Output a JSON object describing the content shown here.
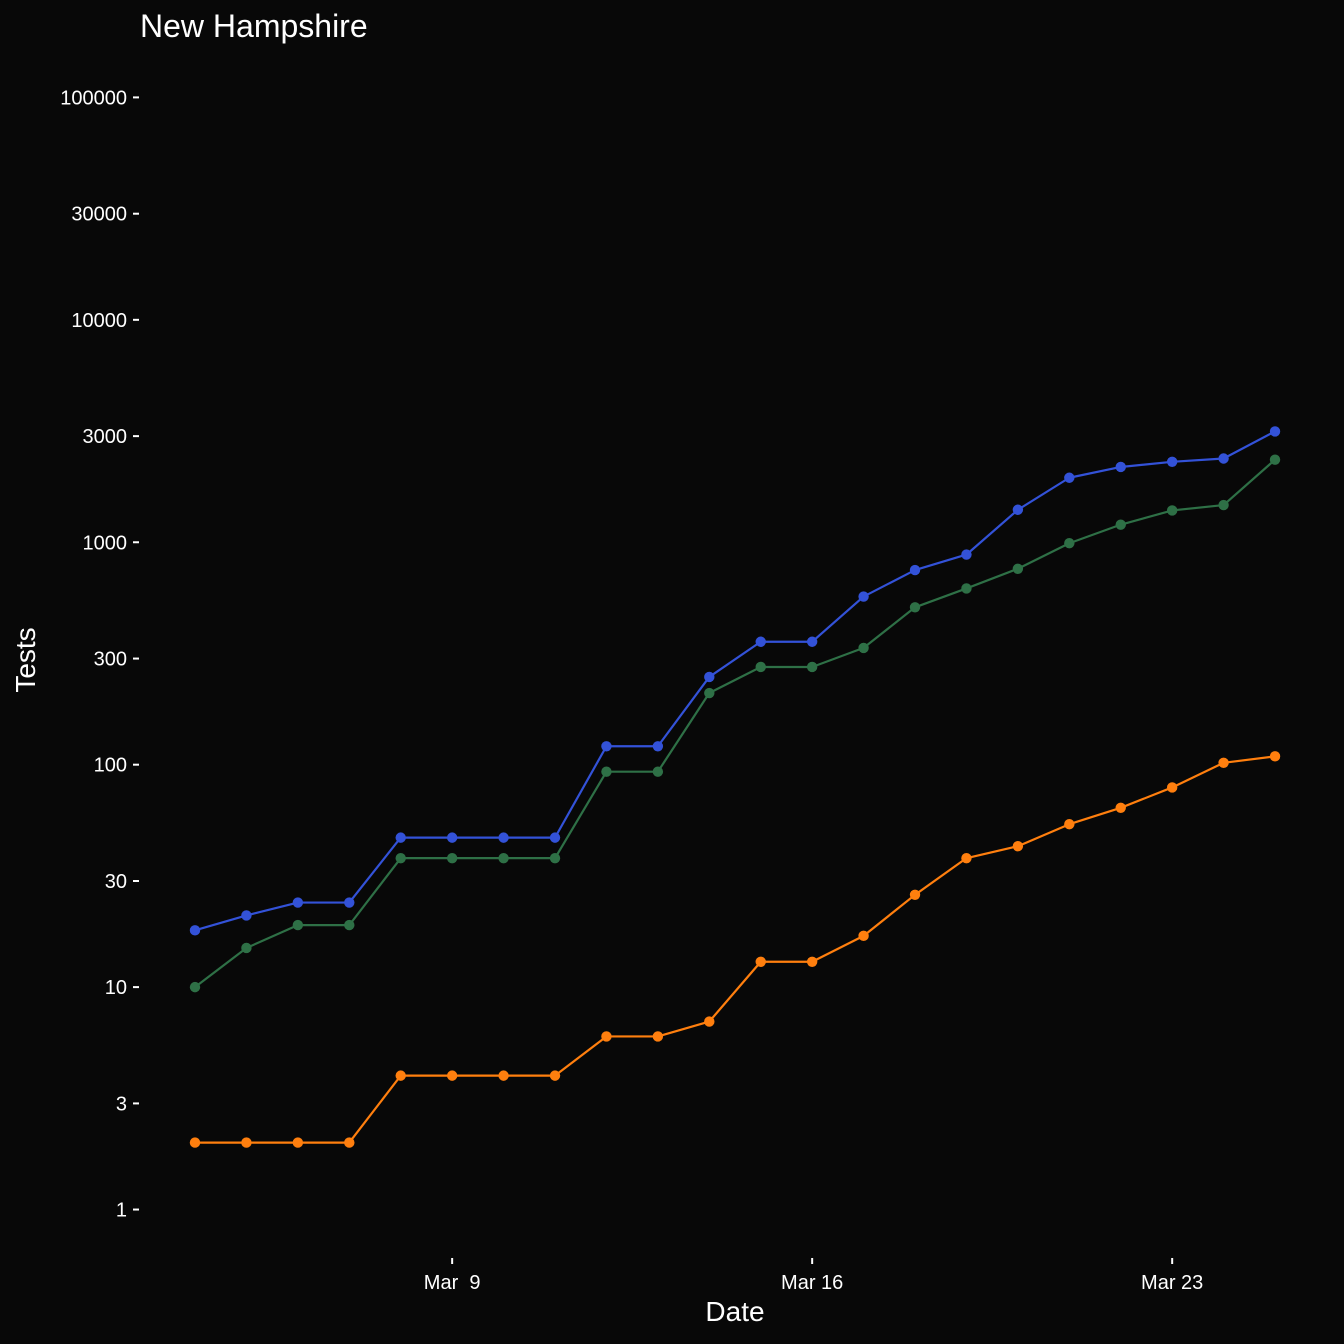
{
  "chart_data": {
    "type": "line",
    "title": "New Hampshire",
    "xlabel": "Date",
    "ylabel": "Tests",
    "y_scale": "log10",
    "ylim": [
      0.7,
      160000
    ],
    "y_ticks": [
      1,
      3,
      10,
      30,
      100,
      300,
      1000,
      3000,
      10000,
      30000,
      100000
    ],
    "x_ticks": [
      {
        "date": "2020-03-09",
        "label": "Mar  9"
      },
      {
        "date": "2020-03-16",
        "label": "Mar 16"
      },
      {
        "date": "2020-03-23",
        "label": "Mar 23"
      }
    ],
    "x": [
      "2020-03-04",
      "2020-03-05",
      "2020-03-06",
      "2020-03-07",
      "2020-03-08",
      "2020-03-09",
      "2020-03-10",
      "2020-03-11",
      "2020-03-12",
      "2020-03-13",
      "2020-03-14",
      "2020-03-15",
      "2020-03-16",
      "2020-03-17",
      "2020-03-18",
      "2020-03-19",
      "2020-03-20",
      "2020-03-21",
      "2020-03-22",
      "2020-03-23",
      "2020-03-24",
      "2020-03-25"
    ],
    "grid": false,
    "legend": "none",
    "series": [
      {
        "color": "#3352d8",
        "values": [
          18,
          21,
          24,
          24,
          47,
          47,
          47,
          47,
          121,
          121,
          248,
          357,
          357,
          570,
          750,
          880,
          1400,
          1950,
          2180,
          2300,
          2380,
          3150
        ]
      },
      {
        "color": "#2e7046",
        "values": [
          10,
          15,
          19,
          19,
          38,
          38,
          38,
          38,
          93,
          93,
          210,
          275,
          275,
          335,
          510,
          620,
          760,
          990,
          1200,
          1390,
          1470,
          2350
        ]
      },
      {
        "color": "#ff7f0e",
        "values": [
          2,
          2,
          2,
          2,
          4,
          4,
          4,
          4,
          6,
          6,
          7,
          13,
          13,
          17,
          26,
          38,
          43,
          54,
          64,
          79,
          102,
          109
        ]
      }
    ]
  }
}
